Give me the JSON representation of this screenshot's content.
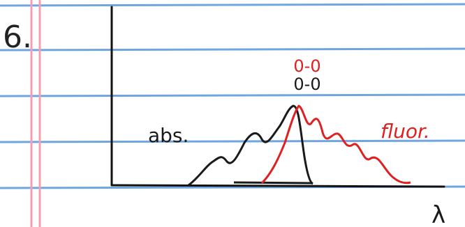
{
  "page": {
    "number": "6.",
    "labels": {
      "fluor_peak": "0-0",
      "abs_peak": "0-0",
      "abs": "abs.",
      "fluor": "fluor.",
      "x_axis": "λ"
    }
  }
}
